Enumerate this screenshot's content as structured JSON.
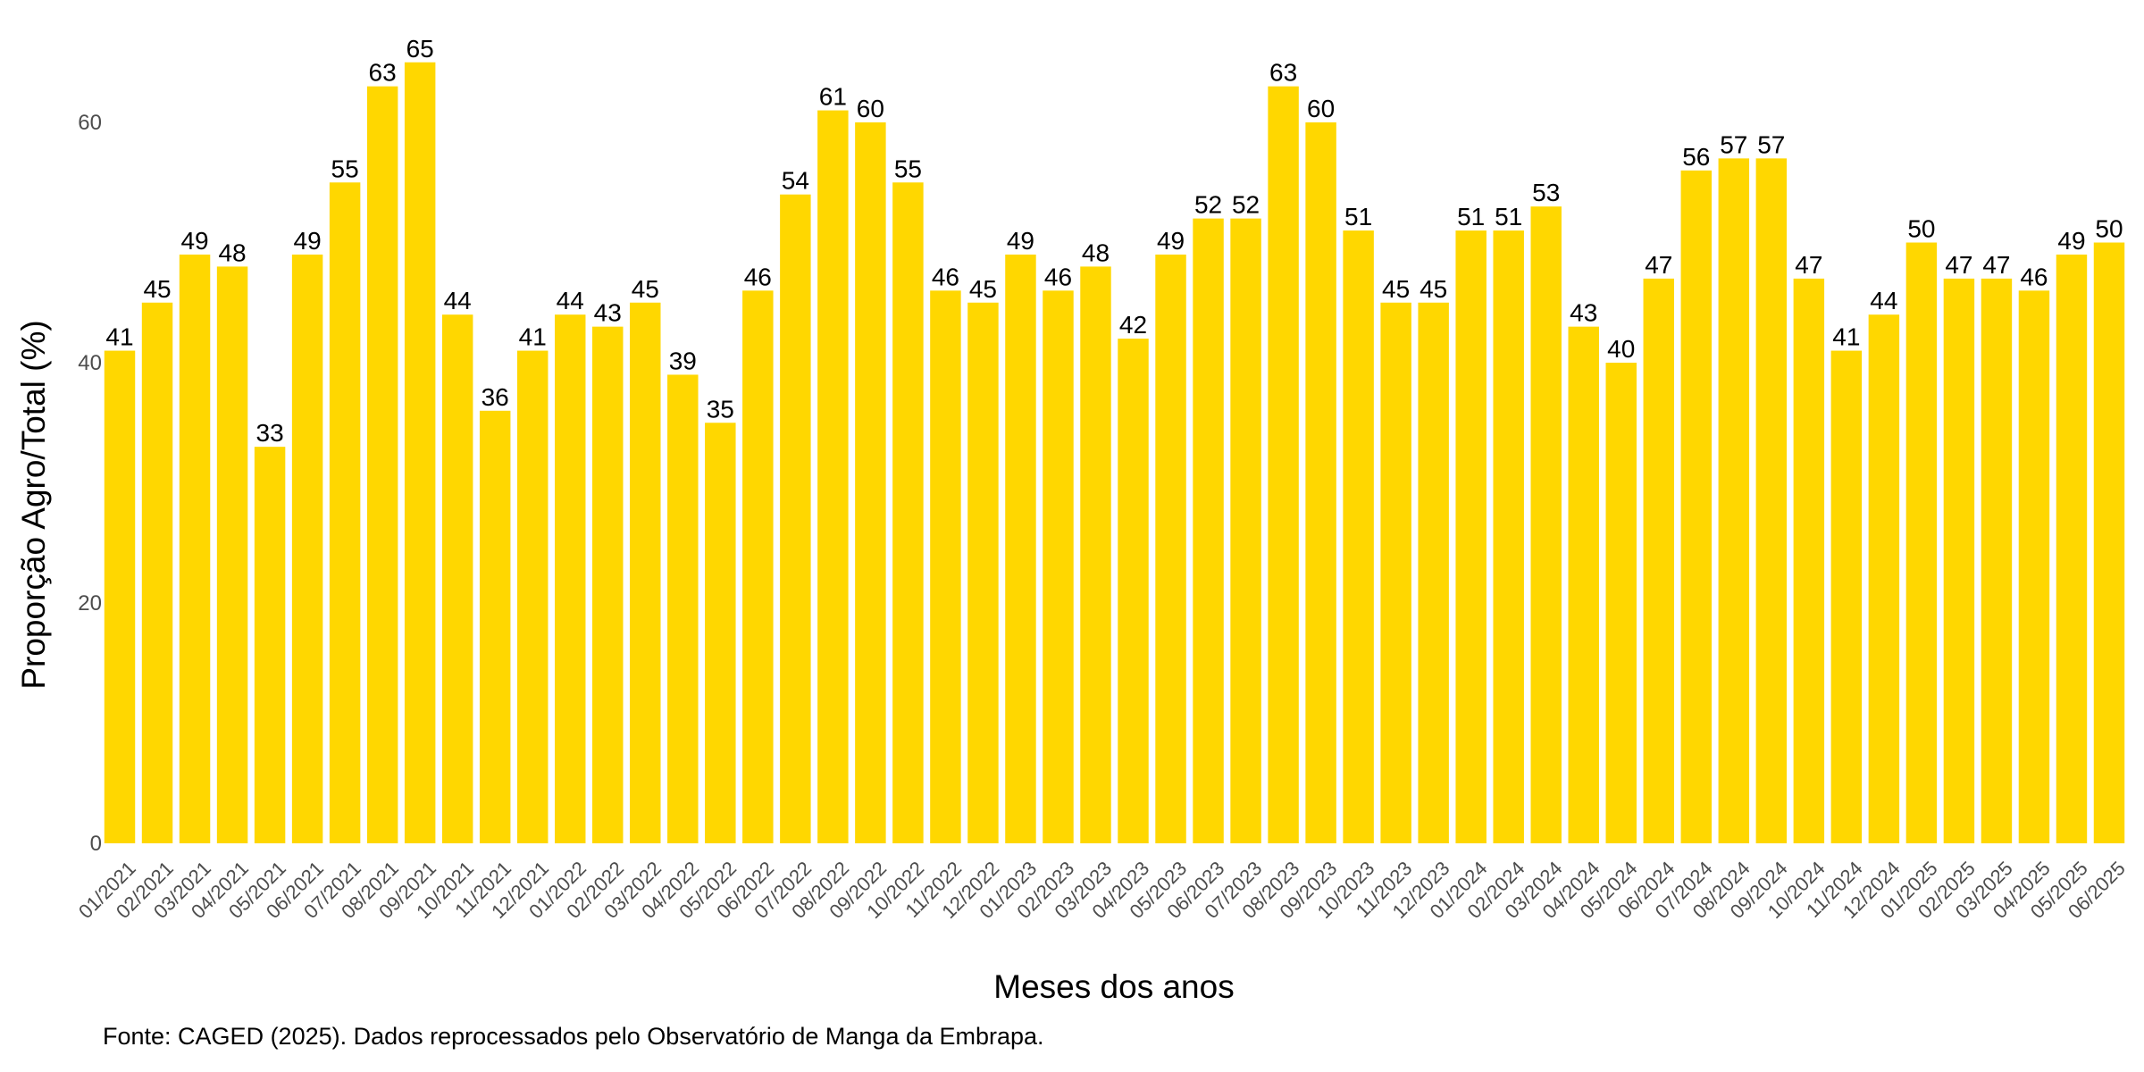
{
  "chart_data": {
    "type": "bar",
    "categories": [
      "01/2021",
      "02/2021",
      "03/2021",
      "04/2021",
      "05/2021",
      "06/2021",
      "07/2021",
      "08/2021",
      "09/2021",
      "10/2021",
      "11/2021",
      "12/2021",
      "01/2022",
      "02/2022",
      "03/2022",
      "04/2022",
      "05/2022",
      "06/2022",
      "07/2022",
      "08/2022",
      "09/2022",
      "10/2022",
      "11/2022",
      "12/2022",
      "01/2023",
      "02/2023",
      "03/2023",
      "04/2023",
      "05/2023",
      "06/2023",
      "07/2023",
      "08/2023",
      "09/2023",
      "10/2023",
      "11/2023",
      "12/2023",
      "01/2024",
      "02/2024",
      "03/2024",
      "04/2024",
      "05/2024",
      "06/2024",
      "07/2024",
      "08/2024",
      "09/2024",
      "10/2024",
      "11/2024",
      "12/2024",
      "01/2025",
      "02/2025",
      "03/2025",
      "04/2025",
      "05/2025",
      "06/2025"
    ],
    "values": [
      41,
      45,
      49,
      48,
      33,
      49,
      55,
      63,
      65,
      44,
      36,
      41,
      44,
      43,
      45,
      39,
      35,
      46,
      54,
      61,
      60,
      55,
      46,
      45,
      49,
      46,
      48,
      42,
      49,
      52,
      52,
      63,
      60,
      51,
      45,
      45,
      51,
      51,
      53,
      43,
      40,
      47,
      56,
      57,
      57,
      47,
      41,
      44,
      50,
      47,
      47,
      46,
      49,
      50
    ],
    "xlabel": "Meses dos anos",
    "ylabel": "Proporção Agro/Total (%)",
    "ylim": [
      0,
      68
    ],
    "yticks": [
      0,
      20,
      40,
      60
    ],
    "grid": false,
    "bar_color": "#FFD700"
  },
  "caption": "Fonte: CAGED (2025). Dados reprocessados pelo Observatório de Manga da Embrapa."
}
